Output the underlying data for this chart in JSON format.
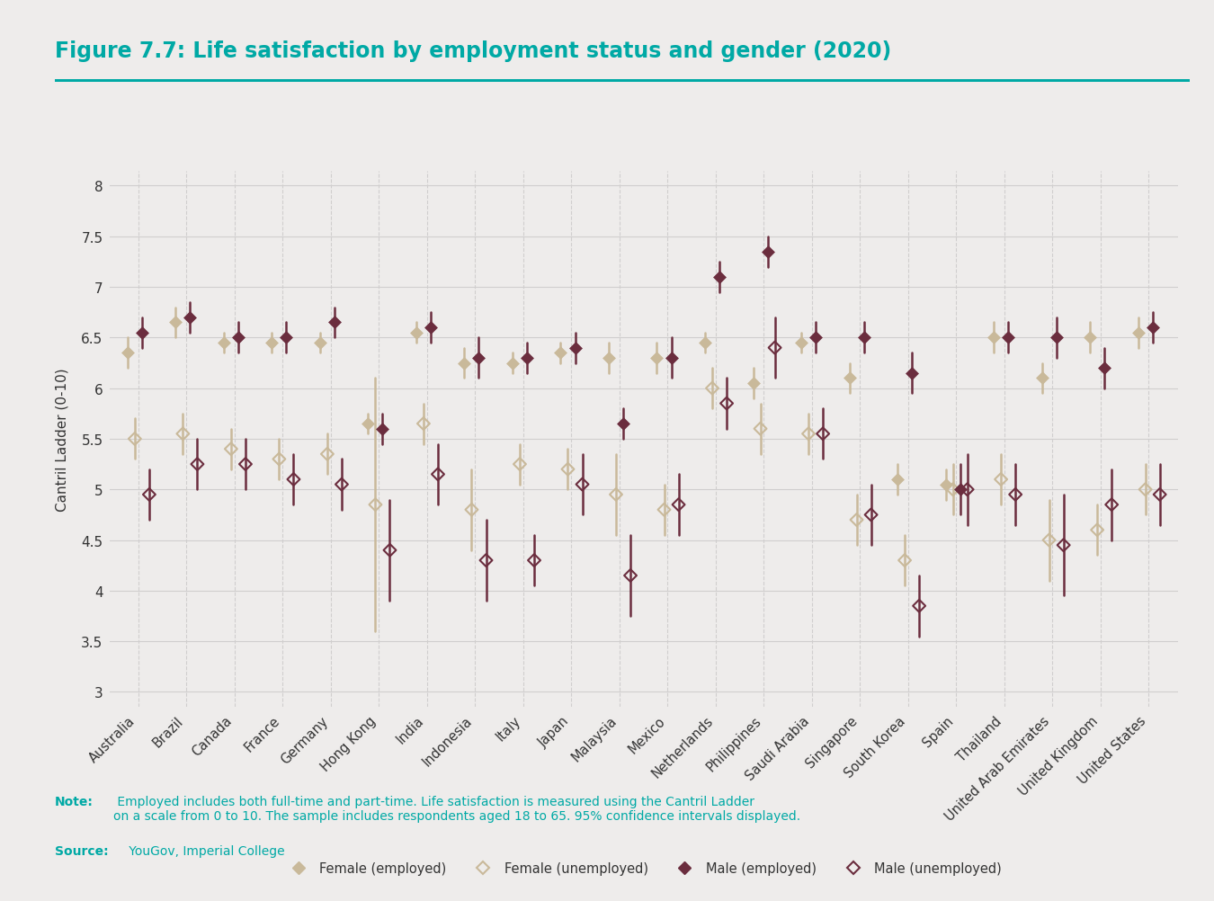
{
  "title": "Figure 7.7: Life satisfaction by employment status and gender (2020)",
  "ylabel": "Cantril Ladder (0-10)",
  "note_bold": "Note:",
  "note_regular": " Employed includes both full-time and part-time. Life satisfaction is measured using the Cantril Ladder\non a scale from 0 to 10. The sample includes respondents aged 18 to 65. 95% confidence intervals displayed.",
  "source_bold": "Source:",
  "source_regular": " YouGov, Imperial College",
  "background_color": "#eeeceb",
  "teal_color": "#00a9a5",
  "text_color": "#333333",
  "countries": [
    "Australia",
    "Brazil",
    "Canada",
    "France",
    "Germany",
    "Hong Kong",
    "India",
    "Indonesia",
    "Italy",
    "Japan",
    "Malaysia",
    "Mexico",
    "Netherlands",
    "Philippines",
    "Saudi Arabia",
    "Singapore",
    "South Korea",
    "Spain",
    "Thailand",
    "United Arab Emirates",
    "United Kingdom",
    "United States"
  ],
  "female_employed": {
    "mean": [
      6.35,
      6.65,
      6.45,
      6.45,
      6.45,
      5.65,
      6.55,
      6.25,
      6.25,
      6.35,
      6.3,
      6.3,
      6.45,
      6.05,
      6.45,
      6.1,
      5.1,
      5.05,
      6.5,
      6.1,
      6.5,
      6.55
    ],
    "ci_low": [
      6.2,
      6.5,
      6.35,
      6.35,
      6.35,
      5.55,
      6.45,
      6.1,
      6.15,
      6.25,
      6.15,
      6.15,
      6.35,
      5.9,
      6.35,
      5.95,
      4.95,
      4.9,
      6.35,
      5.95,
      6.35,
      6.4
    ],
    "ci_high": [
      6.5,
      6.8,
      6.55,
      6.55,
      6.55,
      5.75,
      6.65,
      6.4,
      6.35,
      6.45,
      6.45,
      6.45,
      6.55,
      6.2,
      6.55,
      6.25,
      5.25,
      5.2,
      6.65,
      6.25,
      6.65,
      6.7
    ],
    "color": "#c9b99a",
    "filled": true,
    "label": "Female (employed)"
  },
  "female_unemployed": {
    "mean": [
      5.5,
      5.55,
      5.4,
      5.3,
      5.35,
      4.85,
      5.65,
      4.8,
      5.25,
      5.2,
      4.95,
      4.8,
      6.0,
      5.6,
      5.55,
      4.7,
      4.3,
      5.0,
      5.1,
      4.5,
      4.6,
      5.0
    ],
    "ci_low": [
      5.3,
      5.35,
      5.2,
      5.1,
      5.15,
      3.6,
      5.45,
      4.4,
      5.05,
      5.0,
      4.55,
      4.55,
      5.8,
      5.35,
      5.35,
      4.45,
      4.05,
      4.75,
      4.85,
      4.1,
      4.35,
      4.75
    ],
    "ci_high": [
      5.7,
      5.75,
      5.6,
      5.5,
      5.55,
      6.1,
      5.85,
      5.2,
      5.45,
      5.4,
      5.35,
      5.05,
      6.2,
      5.85,
      5.75,
      4.95,
      4.55,
      5.25,
      5.35,
      4.9,
      4.85,
      5.25
    ],
    "color": "#c9b99a",
    "filled": false,
    "label": "Female (unemployed)"
  },
  "male_employed": {
    "mean": [
      6.55,
      6.7,
      6.5,
      6.5,
      6.65,
      5.6,
      6.6,
      6.3,
      6.3,
      6.4,
      5.65,
      6.3,
      7.1,
      7.35,
      6.5,
      6.5,
      6.15,
      5.0,
      6.5,
      6.5,
      6.2,
      6.6
    ],
    "ci_low": [
      6.4,
      6.55,
      6.35,
      6.35,
      6.5,
      5.45,
      6.45,
      6.1,
      6.15,
      6.25,
      5.5,
      6.1,
      6.95,
      7.2,
      6.35,
      6.35,
      5.95,
      4.75,
      6.35,
      6.3,
      6.0,
      6.45
    ],
    "ci_high": [
      6.7,
      6.85,
      6.65,
      6.65,
      6.8,
      5.75,
      6.75,
      6.5,
      6.45,
      6.55,
      5.8,
      6.5,
      7.25,
      7.5,
      6.65,
      6.65,
      6.35,
      5.25,
      6.65,
      6.7,
      6.4,
      6.75
    ],
    "color": "#6b2d3e",
    "filled": true,
    "label": "Male (employed)"
  },
  "male_unemployed": {
    "mean": [
      4.95,
      5.25,
      5.25,
      5.1,
      5.05,
      4.4,
      5.15,
      4.3,
      4.3,
      5.05,
      4.15,
      4.85,
      5.85,
      6.4,
      5.55,
      4.75,
      3.85,
      5.0,
      4.95,
      4.45,
      4.85,
      4.95
    ],
    "ci_low": [
      4.7,
      5.0,
      5.0,
      4.85,
      4.8,
      3.9,
      4.85,
      3.9,
      4.05,
      4.75,
      3.75,
      4.55,
      5.6,
      6.1,
      5.3,
      4.45,
      3.55,
      4.65,
      4.65,
      3.95,
      4.5,
      4.65
    ],
    "ci_high": [
      5.2,
      5.5,
      5.5,
      5.35,
      5.3,
      4.9,
      5.45,
      4.7,
      4.55,
      5.35,
      4.55,
      5.15,
      6.1,
      6.7,
      5.8,
      5.05,
      4.15,
      5.35,
      5.25,
      4.95,
      5.2,
      5.25
    ],
    "color": "#6b2d3e",
    "filled": false,
    "label": "Male (unemployed)"
  },
  "ylim": [
    2.85,
    8.15
  ],
  "yticks": [
    3,
    3.5,
    4,
    4.5,
    5,
    5.5,
    6,
    6.5,
    7,
    7.5,
    8
  ],
  "ytick_labels": [
    "3",
    "3.5",
    "4",
    "4.5",
    "5",
    "5.5",
    "6",
    "6.5",
    "7",
    "7.5",
    "8"
  ]
}
